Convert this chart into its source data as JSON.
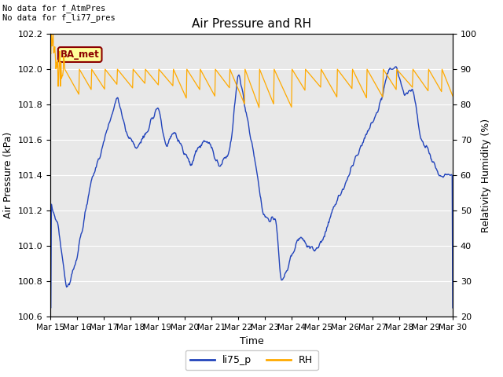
{
  "title": "Air Pressure and RH",
  "xlabel": "Time",
  "ylabel_left": "Air Pressure (kPa)",
  "ylabel_right": "Relativity Humidity (%)",
  "ylim_left": [
    100.6,
    102.2
  ],
  "ylim_right": [
    20,
    100
  ],
  "yticks_left": [
    100.6,
    100.8,
    101.0,
    101.2,
    101.4,
    101.6,
    101.8,
    102.0,
    102.2
  ],
  "yticks_right": [
    20,
    30,
    40,
    50,
    60,
    70,
    80,
    90,
    100
  ],
  "xtick_labels": [
    "Mar 15",
    "Mar 16",
    "Mar 17",
    "Mar 18",
    "Mar 19",
    "Mar 20",
    "Mar 21",
    "Mar 22",
    "Mar 23",
    "Mar 24",
    "Mar 25",
    "Mar 26",
    "Mar 27",
    "Mar 28",
    "Mar 29",
    "Mar 30"
  ],
  "annotation_text": "No data for f_AtmPres\nNo data for f_li77_pres",
  "box_label": "BA_met",
  "line1_color": "#2244bb",
  "line2_color": "#ffaa00",
  "line1_label": "li75_p",
  "line2_label": "RH",
  "plot_bg_color": "#e8e8e8",
  "fig_bg_color": "#ffffff",
  "grid_color": "#ffffff",
  "title_fontsize": 11,
  "label_fontsize": 9,
  "tick_fontsize": 8
}
